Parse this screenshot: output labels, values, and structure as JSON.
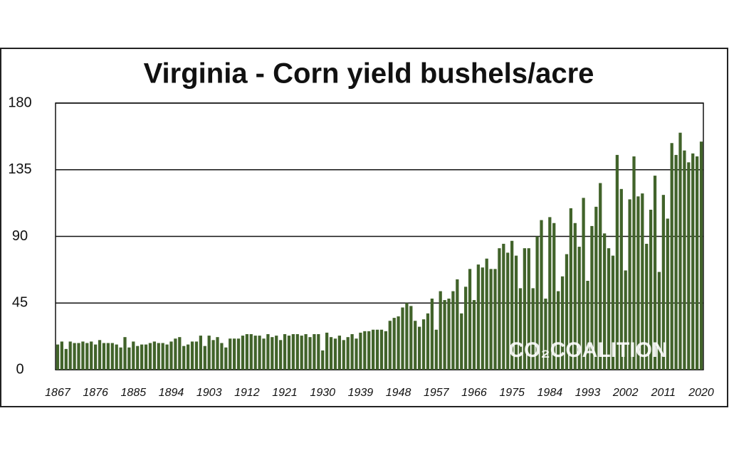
{
  "chart_data": {
    "type": "bar",
    "title": "Virginia - Corn yield bushels/acre",
    "watermark": "CO₂COALITION",
    "color": "#41632a",
    "grid": true,
    "ylim": [
      0,
      180
    ],
    "yticks": [
      0,
      45,
      90,
      135,
      180
    ],
    "categories": [
      "1867",
      null,
      null,
      null,
      null,
      null,
      null,
      null,
      null,
      "1876",
      null,
      null,
      null,
      null,
      null,
      null,
      null,
      null,
      "1885",
      null,
      null,
      null,
      null,
      null,
      null,
      null,
      null,
      "1894",
      null,
      null,
      null,
      null,
      null,
      null,
      null,
      null,
      "1903",
      null,
      null,
      null,
      null,
      null,
      null,
      null,
      null,
      "1912",
      null,
      null,
      null,
      null,
      null,
      null,
      null,
      null,
      "1921",
      null,
      null,
      null,
      null,
      null,
      null,
      null,
      null,
      "1930",
      null,
      null,
      null,
      null,
      null,
      null,
      null,
      null,
      "1939",
      null,
      null,
      null,
      null,
      null,
      null,
      null,
      null,
      "1948",
      null,
      null,
      null,
      null,
      null,
      null,
      null,
      null,
      "1957",
      null,
      null,
      null,
      null,
      null,
      null,
      null,
      null,
      "1966",
      null,
      null,
      null,
      null,
      null,
      null,
      null,
      null,
      "1975",
      null,
      null,
      null,
      null,
      null,
      null,
      null,
      null,
      "1984",
      null,
      null,
      null,
      null,
      null,
      null,
      null,
      null,
      "1993",
      null,
      null,
      null,
      null,
      null,
      null,
      null,
      null,
      "2002",
      null,
      null,
      null,
      null,
      null,
      null,
      null,
      null,
      "2011",
      null,
      null,
      null,
      null,
      null,
      null,
      null,
      null,
      "2020"
    ],
    "values": [
      17,
      19,
      14,
      19,
      18,
      18,
      19,
      18,
      19,
      17,
      20,
      18,
      18,
      18,
      17,
      15,
      22,
      15,
      19,
      16,
      17,
      17,
      18,
      19,
      18,
      18,
      17,
      19,
      21,
      22,
      16,
      17,
      19,
      19,
      23,
      16,
      23,
      20,
      22,
      18,
      15,
      21,
      21,
      21,
      23,
      24,
      24,
      23,
      23,
      21,
      24,
      22,
      23,
      20,
      24,
      23,
      24,
      24,
      23,
      24,
      22,
      24,
      24,
      13,
      25,
      22,
      21,
      23,
      20,
      22,
      24,
      21,
      25,
      26,
      26,
      27,
      27,
      27,
      26,
      33,
      35,
      36,
      42,
      45,
      43,
      33,
      29,
      34,
      38,
      48,
      27,
      53,
      47,
      48,
      53,
      61,
      38,
      56,
      68,
      47,
      71,
      69,
      75,
      68,
      68,
      82,
      85,
      79,
      87,
      77,
      55,
      82,
      82,
      55,
      90,
      101,
      48,
      103,
      99,
      53,
      63,
      78,
      109,
      99,
      83,
      116,
      60,
      97,
      110,
      126,
      92,
      82,
      77,
      145,
      122,
      67,
      115,
      144,
      117,
      119,
      85,
      108,
      131,
      66,
      118,
      102,
      153,
      145,
      160,
      148,
      140,
      146,
      144,
      154
    ]
  }
}
